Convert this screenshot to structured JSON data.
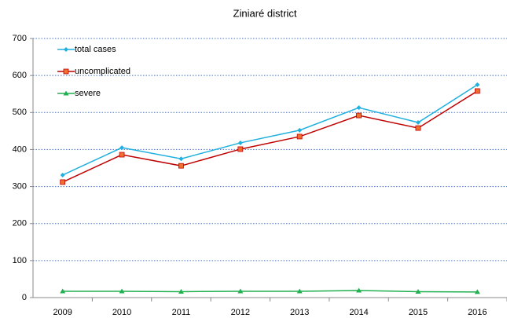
{
  "chart_data": {
    "type": "line",
    "title": "Ziniaré district",
    "categories": [
      "2009",
      "2010",
      "2011",
      "2012",
      "2013",
      "2014",
      "2015",
      "2016"
    ],
    "series": [
      {
        "name": "total cases",
        "color": "#1fb0e0",
        "marker": "diamond",
        "values": [
          331,
          405,
          375,
          418,
          452,
          513,
          473,
          575
        ]
      },
      {
        "name": "uncomplicated",
        "color": "#c00000",
        "marker_fill": "#f07030",
        "marker": "square",
        "values": [
          312,
          386,
          356,
          401,
          435,
          492,
          458,
          558
        ]
      },
      {
        "name": "severe",
        "color": "#20b050",
        "marker": "triangle",
        "values": [
          17,
          17,
          16,
          17,
          17,
          19,
          16,
          15
        ]
      }
    ],
    "ylim": [
      0,
      700
    ],
    "yticks": [
      0,
      100,
      200,
      300,
      400,
      500,
      600,
      700
    ],
    "grid": true,
    "legend": "top-left"
  }
}
